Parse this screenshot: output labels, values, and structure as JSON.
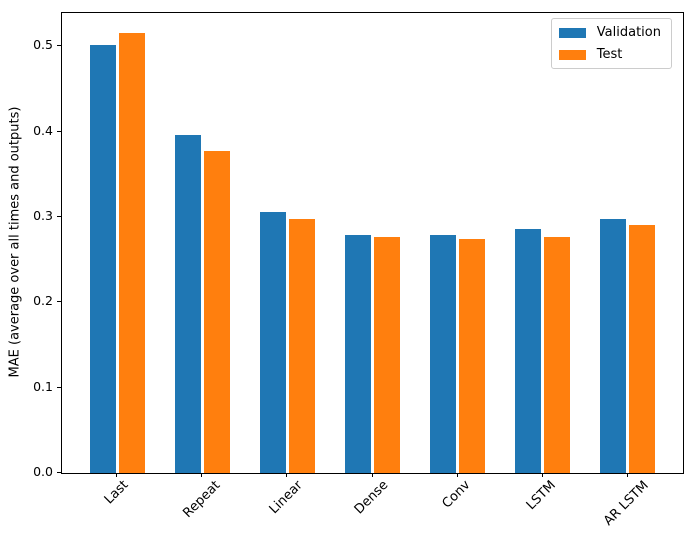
{
  "chart_data": {
    "type": "bar",
    "title": "",
    "xlabel": "",
    "ylabel": "MAE (average over all times and outputs)",
    "categories": [
      "Last",
      "Repeat",
      "Linear",
      "Dense",
      "Conv",
      "LSTM",
      "AR LSTM"
    ],
    "series": [
      {
        "name": "Validation",
        "color": "#1f77b4",
        "values": [
          0.502,
          0.396,
          0.306,
          0.279,
          0.279,
          0.286,
          0.298
        ]
      },
      {
        "name": "Test",
        "color": "#ff7f0e",
        "values": [
          0.515,
          0.377,
          0.298,
          0.276,
          0.274,
          0.277,
          0.291
        ]
      }
    ],
    "ylim": [
      0,
      0.539
    ],
    "yticks": [
      0.0,
      0.1,
      0.2,
      0.3,
      0.4,
      0.5
    ],
    "ytick_labels": [
      "0.0",
      "0.1",
      "0.2",
      "0.3",
      "0.4",
      "0.5"
    ],
    "xtick_rotation": 45,
    "grid": false,
    "legend_position": "upper right",
    "background_color": "#ffffff",
    "axis_color": "#000000"
  }
}
